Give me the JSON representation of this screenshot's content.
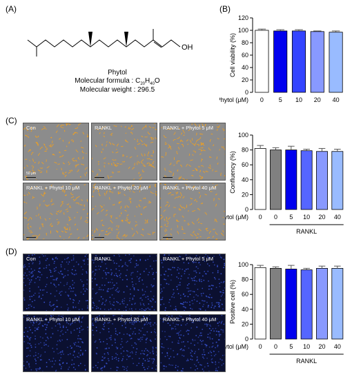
{
  "panels": {
    "a": "(A)",
    "b": "(B)",
    "c": "(C)",
    "d": "(D)"
  },
  "molecule": {
    "label_oh": "OH",
    "name": "Phytol",
    "formula_prefix": "Molecular formula : C",
    "formula_sub1": "20",
    "formula_h": "H",
    "formula_sub2": "40",
    "formula_o": "O",
    "weight": "Molecular weight : 296.5"
  },
  "images": {
    "confluency": [
      "Con",
      "RANKL",
      "RANKL + Phytol 5 μM",
      "RANKL + Phytol 10 μM",
      "RANKL + Phytol 20 μM",
      "RANKL + Phytol 40 μM"
    ],
    "positive": [
      "Con",
      "RANKL",
      "RANKL + Phytol 5 μM",
      "RANKL + Phytol 10 μM",
      "RANKL + Phytol 20 μM",
      "RANKL + Phytol 40 μM"
    ],
    "scale_label": "50 μm",
    "colors": {
      "confluency_bg": "#8c8c8c",
      "confluency_cells": "#f0a020",
      "fluor_bg": "#0b1030",
      "fluor_nuclei": "#3a55d8"
    }
  },
  "chart_data": [
    {
      "type": "bar",
      "panel": "B",
      "ylabel": "Cell viability (%)",
      "xprefix": "Phytol (μM)",
      "categories": [
        "0",
        "5",
        "10",
        "20",
        "40"
      ],
      "values": [
        100,
        99,
        99,
        98,
        97
      ],
      "errors": [
        2,
        2,
        2,
        1,
        2
      ],
      "colors": [
        "#ffffff",
        "#0000ee",
        "#3344ff",
        "#8899ff",
        "#99bbff"
      ],
      "ylim": [
        0,
        120
      ],
      "yticks": [
        0,
        20,
        40,
        60,
        80,
        100,
        120
      ],
      "group_label": ""
    },
    {
      "type": "bar",
      "panel": "C",
      "ylabel": "Confluency (%)",
      "xprefix": "Phytol (μM)",
      "categories": [
        "0",
        "0",
        "5",
        "10",
        "20",
        "40"
      ],
      "values": [
        82,
        80,
        80,
        79,
        78,
        78
      ],
      "errors": [
        4,
        3,
        5,
        2,
        4,
        3
      ],
      "colors": [
        "#ffffff",
        "#808080",
        "#0000ee",
        "#5566ff",
        "#8899ff",
        "#99bbff"
      ],
      "ylim": [
        0,
        100
      ],
      "yticks": [
        0,
        20,
        40,
        60,
        80,
        100
      ],
      "group_label": "RANKL"
    },
    {
      "type": "bar",
      "panel": "D",
      "ylabel": "Positive cell (%)",
      "xprefix": "Phytol (μM)",
      "categories": [
        "0",
        "0",
        "5",
        "10",
        "20",
        "40"
      ],
      "values": [
        96,
        95,
        94,
        93,
        95,
        95
      ],
      "errors": [
        3,
        2,
        5,
        2,
        3,
        3
      ],
      "colors": [
        "#ffffff",
        "#808080",
        "#0000ee",
        "#5566ff",
        "#8899ff",
        "#99bbff"
      ],
      "ylim": [
        0,
        100
      ],
      "yticks": [
        0,
        20,
        40,
        60,
        80,
        100
      ],
      "group_label": "RANKL"
    }
  ]
}
